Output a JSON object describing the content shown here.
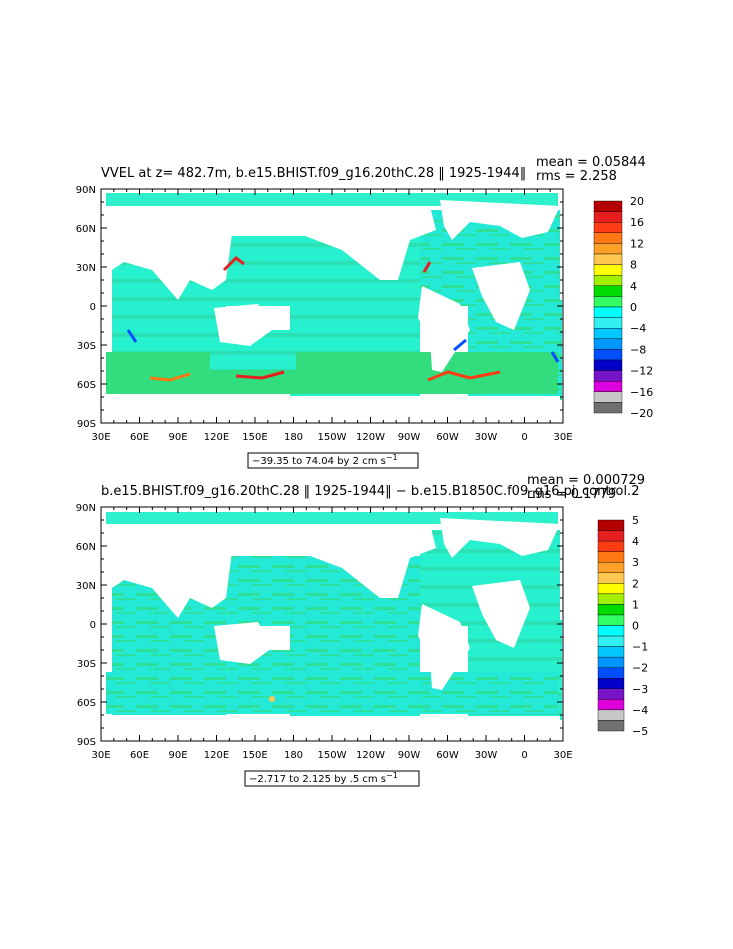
{
  "chart_data": [
    {
      "type": "heatmap",
      "title": "VVEL at z= 482.7m, b.e15.BHIST.f09_g16.20thC.28 ‖ 1925-1944‖",
      "stats": {
        "mean": "mean = 0.05844",
        "rms": "rms = 2.258"
      },
      "x_ticks": [
        "30E",
        "60E",
        "90E",
        "120E",
        "150E",
        "180",
        "150W",
        "120W",
        "90W",
        "60W",
        "30W",
        "0",
        "30E"
      ],
      "y_ticks": [
        "90N",
        "60N",
        "30N",
        "0",
        "30S",
        "60S",
        "90S"
      ],
      "colorbar": {
        "labels": [
          "20",
          "16",
          "12",
          "8",
          "4",
          "0",
          "−4",
          "−8",
          "−12",
          "−16",
          "−20"
        ],
        "colors": [
          "#b40000",
          "#e61e1e",
          "#ff3c14",
          "#ff7814",
          "#ffa028",
          "#ffc850",
          "#ffff00",
          "#a0f000",
          "#00dc00",
          "#32ff64",
          "#00ffff",
          "#32f0f0",
          "#00c8ff",
          "#0096ff",
          "#0050ff",
          "#0000c8",
          "#7814c8",
          "#dc00dc",
          "#c8c8c8",
          "#707070"
        ]
      },
      "range_label": "−39.35 to 74.04 by 2 cm s",
      "range_sup": "−1"
    },
    {
      "type": "heatmap",
      "title": "b.e15.BHIST.f09_g16.20thC.28 ‖ 1925-1944‖ − b.e15.B1850C.f09_g16.pi_control.2",
      "stats": {
        "mean": "mean = 0.000729",
        "rms": "rms = 0.1779"
      },
      "x_ticks": [
        "30E",
        "60E",
        "90E",
        "120E",
        "150E",
        "180",
        "150W",
        "120W",
        "90W",
        "60W",
        "30W",
        "0",
        "30E"
      ],
      "y_ticks": [
        "90N",
        "60N",
        "30N",
        "0",
        "30S",
        "60S",
        "90S"
      ],
      "colorbar": {
        "labels": [
          "5",
          "4",
          "3",
          "2",
          "1",
          "0",
          "−1",
          "−2",
          "−3",
          "−4",
          "−5"
        ],
        "colors": [
          "#b40000",
          "#e61e1e",
          "#ff3c14",
          "#ff7814",
          "#ffa028",
          "#ffc850",
          "#ffff00",
          "#a0f000",
          "#00dc00",
          "#32ff64",
          "#00ffff",
          "#32f0f0",
          "#00c8ff",
          "#0096ff",
          "#0050ff",
          "#0000c8",
          "#7814c8",
          "#dc00dc",
          "#c8c8c8",
          "#707070"
        ]
      },
      "range_label": "−2.717 to 2.125 by .5 cm s",
      "range_sup": "−1"
    }
  ]
}
